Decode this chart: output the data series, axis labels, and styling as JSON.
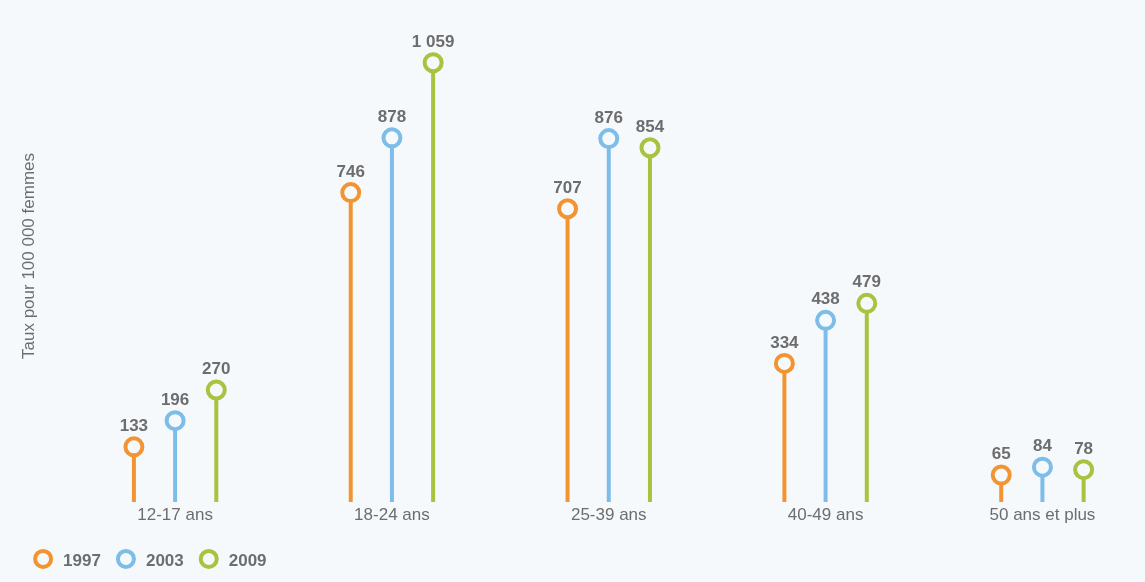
{
  "chart_data": {
    "type": "lollipop",
    "ylabel": "Taux pour 100 000 femmes",
    "categories": [
      "12-17 ans",
      "18-24 ans",
      "25-39 ans",
      "40-49 ans",
      "50 ans et plus"
    ],
    "series": [
      {
        "name": "1997",
        "color": "#f39433",
        "values": [
          133,
          746,
          707,
          334,
          65
        ],
        "value_labels": [
          "133",
          "746",
          "707",
          "334",
          "65"
        ]
      },
      {
        "name": "2003",
        "color": "#7dbde8",
        "values": [
          196,
          878,
          876,
          438,
          84
        ],
        "value_labels": [
          "196",
          "878",
          "876",
          "438",
          "84"
        ]
      },
      {
        "name": "2009",
        "color": "#a9c23f",
        "values": [
          270,
          1059,
          854,
          479,
          78
        ],
        "value_labels": [
          "270",
          "1 059",
          "854",
          "479",
          "78"
        ]
      }
    ],
    "legend": "bottom left",
    "marker": "circle"
  }
}
